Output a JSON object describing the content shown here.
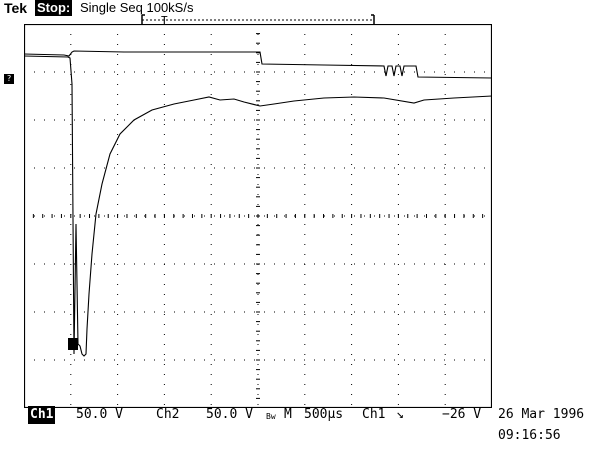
{
  "header": {
    "brand": "Tek",
    "status": "Stop:",
    "acquisition": "Single Seq  100kS/s"
  },
  "screen": {
    "grid": true,
    "divisions_x": 10,
    "divisions_y": 8
  },
  "footer": {
    "ch1_label": "Ch1",
    "ch1_scale": "50.0 V",
    "ch2_label": "Ch2",
    "ch2_scale": "50.0 V",
    "bw_symbol": "Bw",
    "timebase_label": "M",
    "timebase": "500µs",
    "trigger_source": "Ch1",
    "trigger_slope": "↘",
    "trigger_level": "−26 V"
  },
  "datetime": {
    "date": "26 Mar 1996",
    "time": "09:16:56"
  },
  "markers": {
    "ch_marker": "?"
  }
}
